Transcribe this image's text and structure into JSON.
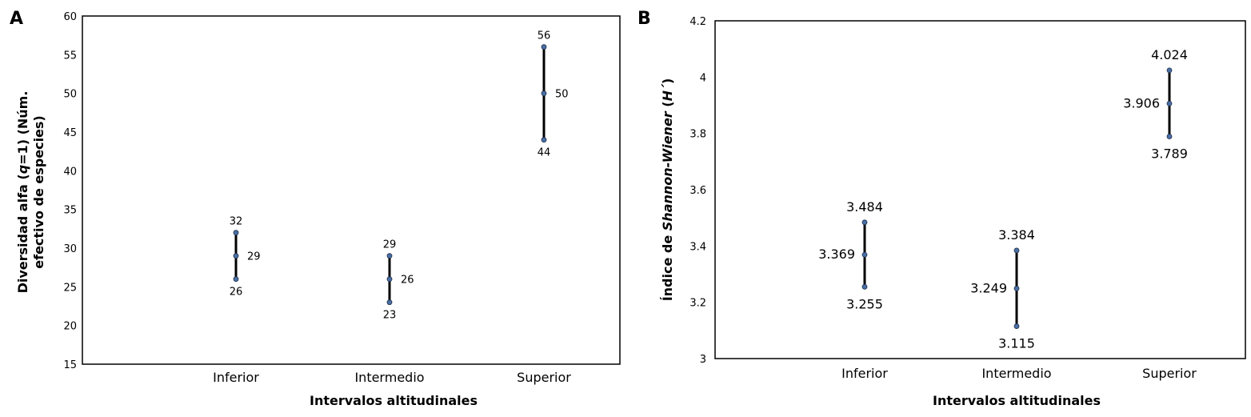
{
  "chart_data": [
    {
      "panel": "A",
      "type": "scatter",
      "title": "",
      "xlabel": "Intervalos altitudinales",
      "ylabel_parts": [
        "Diversidad alfa (",
        "q",
        "=1) (Núm.",
        "efectivo de especies)"
      ],
      "categories": [
        "Inferior",
        "Intermedio",
        "Superior"
      ],
      "ylim": [
        15,
        60
      ],
      "yticks": [
        15,
        20,
        25,
        30,
        35,
        40,
        45,
        50,
        55,
        60
      ],
      "ytick_labels": [
        "15",
        "20",
        "25",
        "30",
        "35",
        "40",
        "45",
        "50",
        "55",
        "60"
      ],
      "grid": false,
      "series": [
        {
          "upper": [
            32,
            29,
            56
          ],
          "value": [
            29,
            26,
            50
          ],
          "lower": [
            26,
            23,
            44
          ]
        }
      ],
      "labels": [
        {
          "upper": "32",
          "value": "29",
          "lower": "26"
        },
        {
          "upper": "29",
          "value": "26",
          "lower": "23"
        },
        {
          "upper": "56",
          "value": "50",
          "lower": "44"
        }
      ]
    },
    {
      "panel": "B",
      "type": "scatter",
      "title": "",
      "xlabel": "Intervalos altitudinales",
      "ylabel_parts": [
        "Índice de ",
        "Shannon-Wiener",
        " (",
        "H´",
        ")"
      ],
      "categories": [
        "Inferior",
        "Intermedio",
        "Superior"
      ],
      "ylim": [
        3,
        4.2
      ],
      "yticks": [
        3,
        3.2,
        3.4,
        3.6,
        3.8,
        4,
        4.2
      ],
      "ytick_labels": [
        "3",
        "3.2",
        "3.4",
        "3.6",
        "3.8",
        "4",
        "4.2"
      ],
      "grid": false,
      "series": [
        {
          "upper": [
            3.484,
            3.384,
            4.024
          ],
          "value": [
            3.369,
            3.249,
            3.906
          ],
          "lower": [
            3.255,
            3.115,
            3.789
          ]
        }
      ],
      "labels": [
        {
          "upper": "3.484",
          "value": "3.369",
          "lower": "3.255"
        },
        {
          "upper": "3.384",
          "value": "3.249",
          "lower": "3.115"
        },
        {
          "upper": "4.024",
          "value": "3.906",
          "lower": "3.789"
        }
      ]
    }
  ],
  "colors": {
    "bar": "#000000",
    "marker": "#4a6fa5",
    "axis": "#000000"
  }
}
